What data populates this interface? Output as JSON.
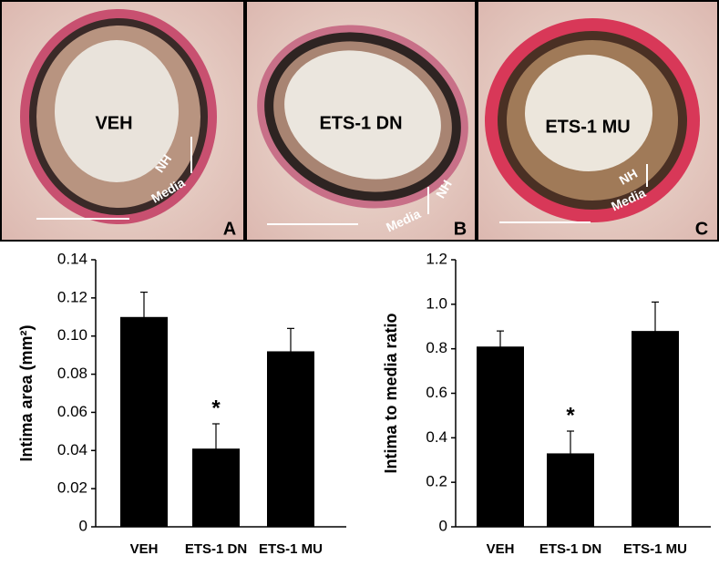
{
  "panels": [
    {
      "label": "VEH",
      "letter": "A",
      "nh": "NH",
      "media": "Media"
    },
    {
      "label": "ETS-1 DN",
      "letter": "B",
      "nh": "NH",
      "media": "Media"
    },
    {
      "label": "ETS-1 MU",
      "letter": "C",
      "nh": "NH",
      "media": "Media"
    }
  ],
  "chart_data": [
    {
      "type": "bar",
      "y_label": "Intima area (mm²)",
      "categories": [
        "VEH",
        "ETS-1 DN",
        "ETS-1 MU"
      ],
      "values": [
        0.11,
        0.041,
        0.092
      ],
      "errors": [
        0.013,
        0.013,
        0.012
      ],
      "color": "#000000",
      "annotation": "*",
      "ylim": [
        0,
        0.14
      ],
      "yticks": [
        0,
        0.02,
        0.04,
        0.06,
        0.08,
        {
          "value": 0.1,
          "label": "0.10"
        },
        0.12,
        0.14
      ]
    },
    {
      "type": "bar",
      "y_label": "Intima to media ratio",
      "categories": [
        "VEH",
        "ETS-1 DN",
        "ETS-1 MU"
      ],
      "values": [
        0.81,
        0.33,
        0.88
      ],
      "errors": [
        0.07,
        0.1,
        0.13
      ],
      "color": "#000000",
      "annotation": "*",
      "ylim": [
        0,
        1.2
      ],
      "yticks": [
        0,
        0.2,
        0.4,
        0.6,
        0.8,
        {
          "value": 1,
          "label": "1.0"
        },
        1.2
      ]
    }
  ]
}
